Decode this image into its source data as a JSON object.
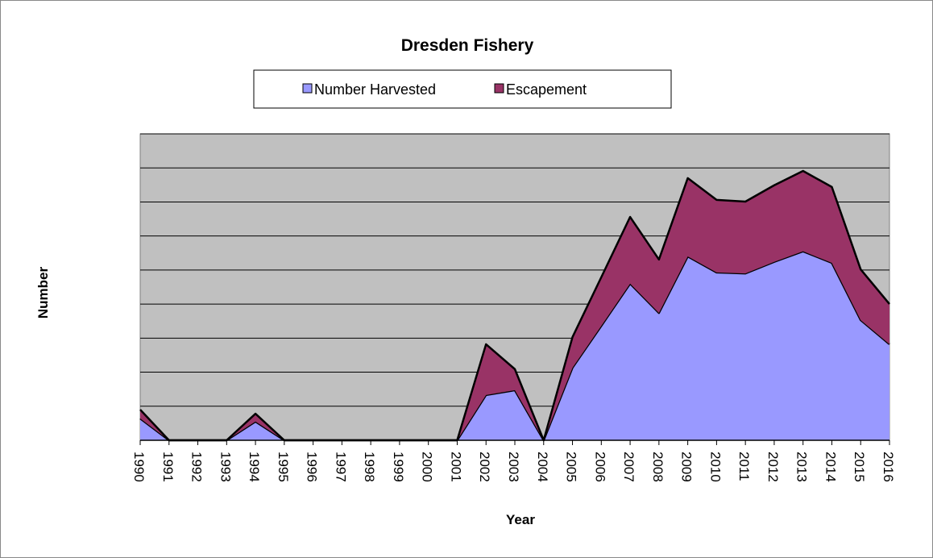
{
  "chart_data": {
    "type": "stacked_area",
    "title": "Dresden Fishery",
    "x_label": "Year",
    "y_label": "Number",
    "categories": [
      "1990",
      "1991",
      "1992",
      "1993",
      "1994",
      "1995",
      "1996",
      "1997",
      "1998",
      "1999",
      "2000",
      "2001",
      "2002",
      "2003",
      "2004",
      "2005",
      "2006",
      "2007",
      "2008",
      "2009",
      "2010",
      "2011",
      "2012",
      "2013",
      "2014",
      "2015",
      "2016"
    ],
    "series": [
      {
        "name": "Number Harvested",
        "color": "#9999ff",
        "values": [
          0.64,
          0,
          0,
          0,
          0.55,
          0,
          0,
          0,
          0,
          0,
          0,
          0,
          1.33,
          1.47,
          0,
          2.13,
          3.36,
          4.6,
          3.74,
          5.4,
          4.93,
          4.9,
          5.24,
          5.55,
          5.21,
          3.53,
          2.82
        ]
      },
      {
        "name": "Escapement",
        "color": "#993366",
        "values": [
          0.26,
          0,
          0,
          0,
          0.23,
          0,
          0,
          0,
          0,
          0,
          0,
          0,
          1.49,
          0.62,
          0,
          0.9,
          1.43,
          1.96,
          1.57,
          2.3,
          2.13,
          2.11,
          2.25,
          2.36,
          2.23,
          1.49,
          1.18
        ]
      }
    ],
    "ylim": [
      0,
      9
    ],
    "yticks": [
      0,
      1,
      2,
      3,
      4,
      5,
      6,
      7,
      8,
      9
    ],
    "grid": true,
    "plot_background": "#c0c0c0",
    "legend": "top"
  }
}
